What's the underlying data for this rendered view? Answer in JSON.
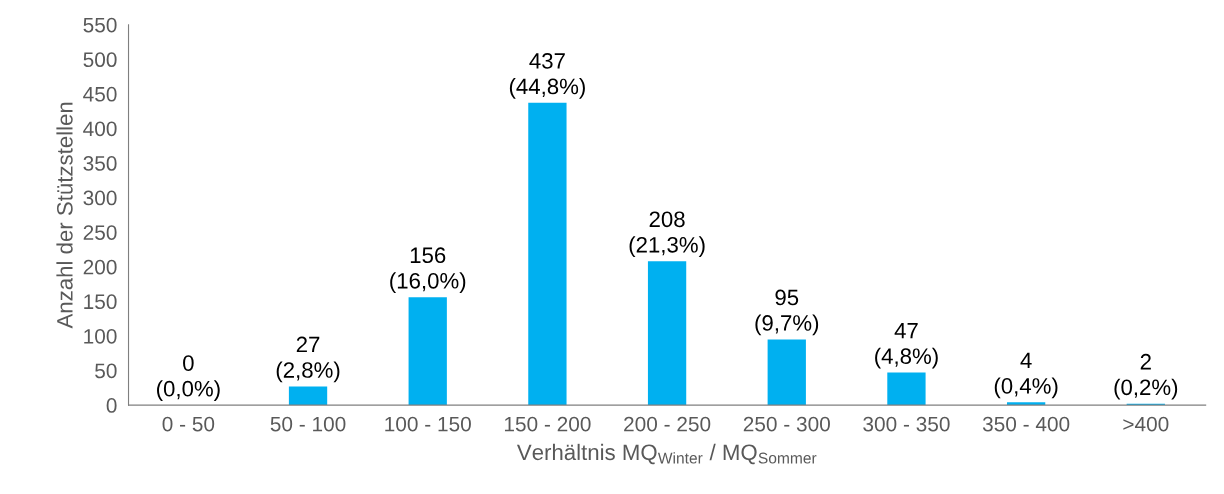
{
  "chart_data": {
    "type": "bar",
    "xlabel": "Verhältnis MQ$_{Winter}$ / MQ$_{Sommer}$",
    "ylabel": "Anzahl der Stützstellen",
    "categories": [
      "0 - 50",
      "50 - 100",
      "100 - 150",
      "150 - 200",
      "200 - 250",
      "250 - 300",
      "300 - 350",
      "350 - 400",
      ">400"
    ],
    "values": [
      0,
      27,
      156,
      437,
      208,
      95,
      47,
      4,
      2
    ],
    "value_labels": [
      "0\n(0,0%)",
      "27\n(2,8%)",
      "156\n(16,0%)",
      "437\n(44,8%)",
      "208\n(21,3%)",
      "95\n(9,7%)",
      "47\n(4,8%)",
      "4\n(0,4%)",
      "2\n(0,2%)"
    ],
    "color": "#00b0f0",
    "ylim": [
      0,
      550
    ],
    "yticks": [
      0,
      50,
      100,
      150,
      200,
      250,
      300,
      350,
      400,
      450,
      500,
      550
    ],
    "grid": false,
    "legend": false
  }
}
